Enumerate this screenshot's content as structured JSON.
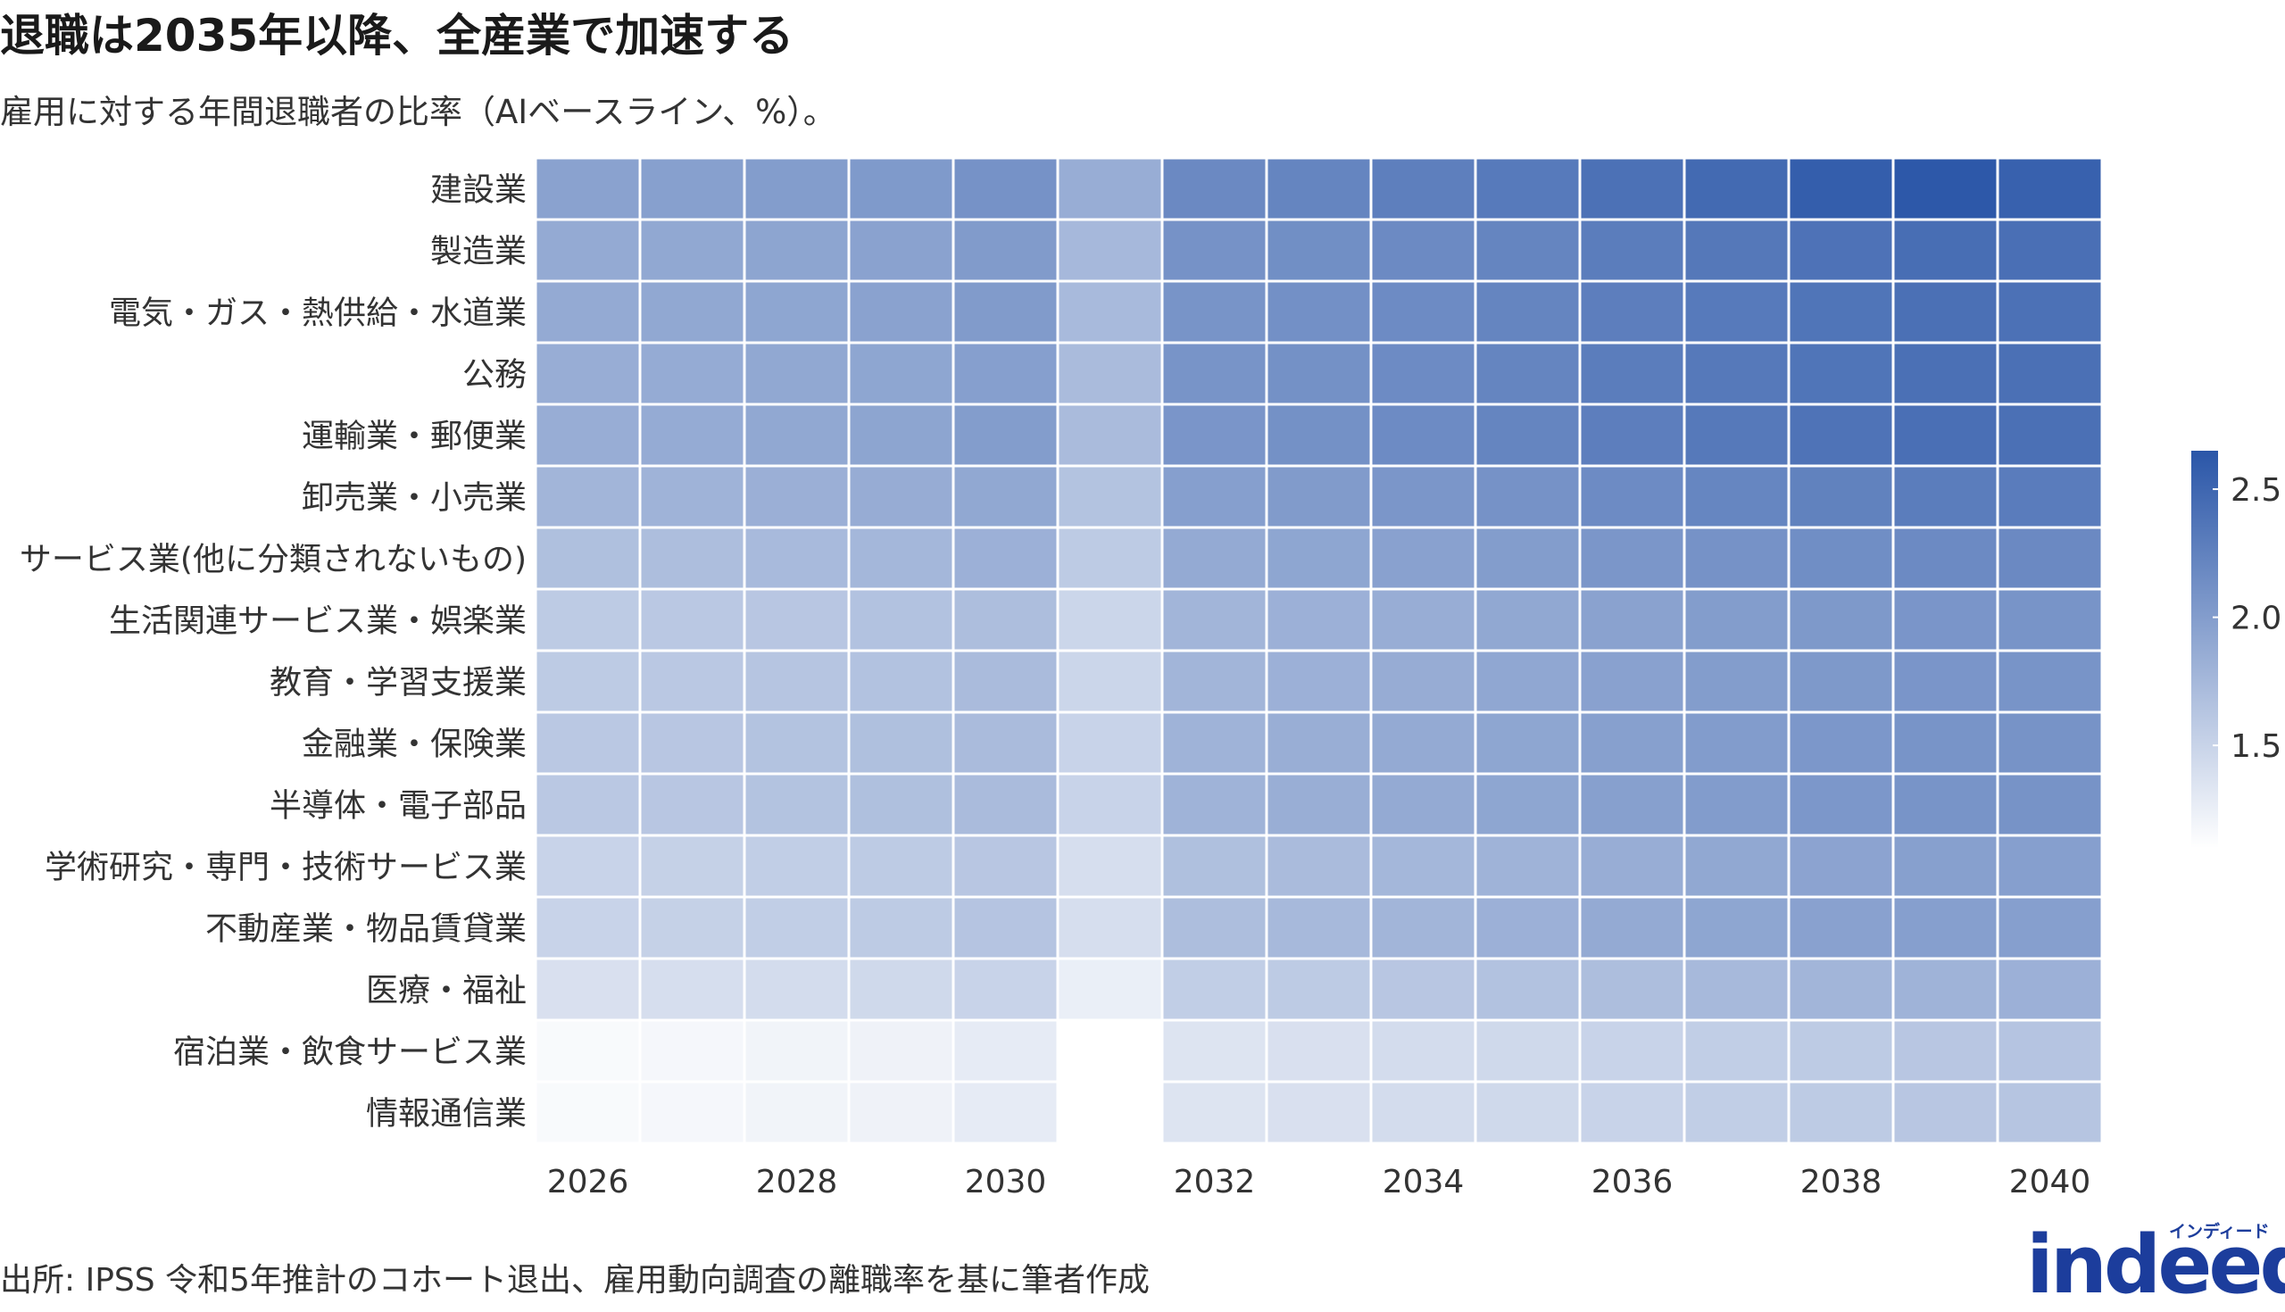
{
  "title": "退職は2035年以降、全産業で加速する",
  "subtitle": "雇用に対する年間退職者の比率（AIベースライン、%）。",
  "source": "出所: IPSS 令和5年推計のコホート退出、雇用動向調査の離職率を基に筆者作成",
  "logo": {
    "text": "indeed",
    "kana": "インディード"
  },
  "colors": {
    "low": "#ffffff",
    "high": "#2a56a8",
    "grid": "#ffffff",
    "text": "#333333"
  },
  "chart_data": {
    "type": "heatmap",
    "x": [
      2026,
      2027,
      2028,
      2029,
      2030,
      2031,
      2032,
      2033,
      2034,
      2035,
      2036,
      2037,
      2038,
      2039,
      2040
    ],
    "x_tick_labels": [
      "2026",
      "2028",
      "2030",
      "2032",
      "2034",
      "2036",
      "2038",
      "2040"
    ],
    "y": [
      "建設業",
      "製造業",
      "電気・ガス・熱供給・水道業",
      "公務",
      "運輸業・郵便業",
      "卸売業・小売業",
      "サービス業(他に分類されないもの)",
      "生活関連サービス業・娯楽業",
      "教育・学習支援業",
      "金融業・保険業",
      "半導体・電子部品",
      "学術研究・専門・技術サービス業",
      "不動産業・物品賃貸業",
      "医療・福祉",
      "宿泊業・飲食サービス業",
      "情報通信業"
    ],
    "values": [
      [
        1.95,
        1.97,
        2.0,
        2.03,
        2.1,
        1.85,
        2.18,
        2.22,
        2.27,
        2.32,
        2.4,
        2.47,
        2.58,
        2.63,
        2.55
      ],
      [
        1.88,
        1.9,
        1.93,
        1.95,
        2.02,
        1.75,
        2.1,
        2.13,
        2.17,
        2.22,
        2.29,
        2.34,
        2.39,
        2.43,
        2.42
      ],
      [
        1.88,
        1.9,
        1.92,
        1.95,
        2.02,
        1.73,
        2.08,
        2.12,
        2.16,
        2.22,
        2.28,
        2.32,
        2.37,
        2.41,
        2.4
      ],
      [
        1.85,
        1.87,
        1.9,
        1.92,
        1.98,
        1.72,
        2.08,
        2.11,
        2.16,
        2.22,
        2.29,
        2.33,
        2.37,
        2.41,
        2.41
      ],
      [
        1.85,
        1.87,
        1.9,
        1.93,
        2.0,
        1.72,
        2.07,
        2.11,
        2.16,
        2.22,
        2.28,
        2.33,
        2.38,
        2.42,
        2.41
      ],
      [
        1.78,
        1.8,
        1.83,
        1.86,
        1.9,
        1.65,
        1.98,
        2.02,
        2.06,
        2.1,
        2.16,
        2.21,
        2.25,
        2.29,
        2.3
      ],
      [
        1.68,
        1.7,
        1.73,
        1.76,
        1.82,
        1.58,
        1.88,
        1.92,
        1.96,
        2.0,
        2.06,
        2.1,
        2.14,
        2.17,
        2.18
      ],
      [
        1.58,
        1.6,
        1.62,
        1.66,
        1.7,
        1.48,
        1.78,
        1.82,
        1.85,
        1.9,
        1.95,
        2.0,
        2.04,
        2.07,
        2.08
      ],
      [
        1.58,
        1.6,
        1.63,
        1.66,
        1.72,
        1.48,
        1.78,
        1.82,
        1.86,
        1.91,
        1.96,
        2.0,
        2.04,
        2.07,
        2.08
      ],
      [
        1.6,
        1.62,
        1.65,
        1.68,
        1.72,
        1.5,
        1.8,
        1.84,
        1.88,
        1.92,
        1.97,
        2.01,
        2.05,
        2.08,
        2.09
      ],
      [
        1.6,
        1.62,
        1.65,
        1.68,
        1.72,
        1.5,
        1.8,
        1.84,
        1.88,
        1.92,
        1.97,
        2.01,
        2.05,
        2.08,
        2.09
      ],
      [
        1.5,
        1.52,
        1.55,
        1.58,
        1.62,
        1.4,
        1.68,
        1.72,
        1.76,
        1.8,
        1.85,
        1.9,
        1.94,
        1.97,
        1.98
      ],
      [
        1.5,
        1.52,
        1.55,
        1.58,
        1.64,
        1.4,
        1.7,
        1.74,
        1.78,
        1.82,
        1.88,
        1.92,
        1.96,
        1.98,
        1.98
      ],
      [
        1.38,
        1.4,
        1.42,
        1.45,
        1.5,
        1.25,
        1.55,
        1.58,
        1.62,
        1.66,
        1.7,
        1.74,
        1.78,
        1.8,
        1.82
      ],
      [
        1.15,
        1.17,
        1.2,
        1.22,
        1.28,
        null,
        1.35,
        1.38,
        1.42,
        1.45,
        1.5,
        1.55,
        1.58,
        1.62,
        1.64
      ],
      [
        1.15,
        1.17,
        1.2,
        1.22,
        1.28,
        null,
        1.35,
        1.38,
        1.42,
        1.45,
        1.5,
        1.55,
        1.58,
        1.62,
        1.63
      ]
    ],
    "color_scale": {
      "min": 1.1,
      "max": 2.65,
      "ticks": [
        1.5,
        2.0,
        2.5
      ],
      "tick_labels": [
        "1.5",
        "2.0",
        "2.5"
      ]
    },
    "legend_position": "right"
  }
}
